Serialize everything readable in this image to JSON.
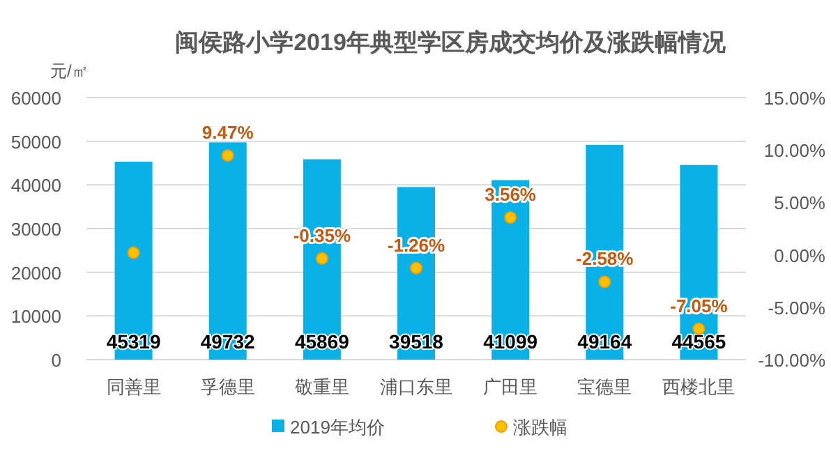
{
  "chart_data": {
    "type": "bar",
    "title": "闽侯路小学2019年典型学区房成交均价及涨跌幅情况",
    "ylabel": "元/㎡",
    "categories": [
      "同善里",
      "孚德里",
      "敬重里",
      "浦口东里",
      "广田里",
      "宝德里",
      "西楼北里"
    ],
    "series": [
      {
        "name": "2019年均价",
        "type": "bar",
        "color": "#0ab0e8",
        "values": [
          45319,
          49732,
          45869,
          39518,
          41099,
          49164,
          44565
        ],
        "data_labels": true
      },
      {
        "name": "涨跌幅",
        "type": "scatter",
        "axis": "y2",
        "color": "#ffc000",
        "marker": "circle",
        "values": [
          0.2,
          9.47,
          -0.35,
          -1.26,
          3.56,
          -2.58,
          -7.05
        ],
        "value_labels": [
          null,
          "9.47%",
          "-0.35%",
          "-1.26%",
          "3.56%",
          "-2.58%",
          "-7.05%"
        ]
      }
    ],
    "ylim": [
      0,
      60000
    ],
    "yticks": [
      0,
      10000,
      20000,
      30000,
      40000,
      50000,
      60000
    ],
    "y2lim": [
      -10,
      15
    ],
    "y2ticks": [
      {
        "value": -10,
        "label": "-10.00%"
      },
      {
        "value": -5,
        "label": "-5.00%"
      },
      {
        "value": 0,
        "label": "0.00%"
      },
      {
        "value": 5,
        "label": "5.00%"
      },
      {
        "value": 10,
        "label": "10.00%"
      },
      {
        "value": 15,
        "label": "15.00%"
      }
    ],
    "grid": "y",
    "legend": "bottom"
  }
}
